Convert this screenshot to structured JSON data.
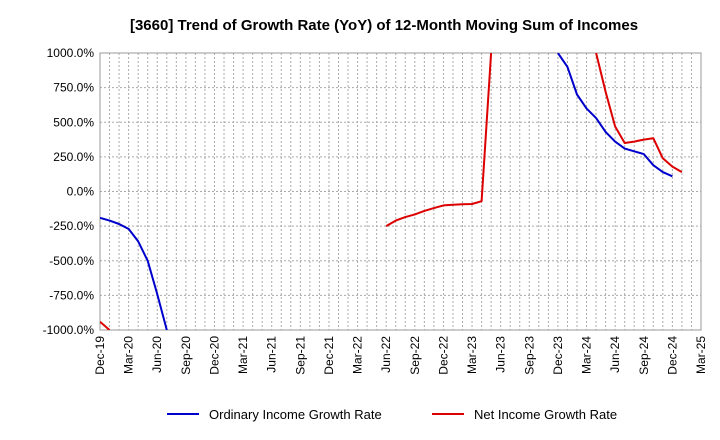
{
  "chart_data": {
    "type": "line",
    "title": "[3660]  Trend of Growth Rate (YoY) of 12-Month Moving Sum of Incomes",
    "xlabel": "",
    "ylabel": "",
    "ylim": [
      -1000,
      1000
    ],
    "yticks": [
      1000,
      750,
      500,
      250,
      0,
      -250,
      -500,
      -750,
      -1000
    ],
    "ytick_labels": [
      "1000.0%",
      "750.0%",
      "500.0%",
      "250.0%",
      "0.0%",
      "-250.0%",
      "-500.0%",
      "-750.0%",
      "-1000.0%"
    ],
    "x_start": "Dec-19",
    "x_end": "Mar-25",
    "xtick_labels": [
      "Dec-19",
      "Mar-20",
      "Jun-20",
      "Sep-20",
      "Dec-20",
      "Mar-21",
      "Jun-21",
      "Sep-21",
      "Dec-21",
      "Mar-22",
      "Jun-22",
      "Sep-22",
      "Dec-22",
      "Mar-23",
      "Jun-23",
      "Sep-23",
      "Dec-23",
      "Mar-24",
      "Jun-24",
      "Sep-24",
      "Dec-24",
      "Mar-25"
    ],
    "grid": true,
    "legend_position": "bottom",
    "series": [
      {
        "name": "Ordinary Income Growth Rate",
        "color": "#0000cc",
        "segments": [
          [
            [
              "Dec-19",
              -190
            ],
            [
              "Jan-20",
              -210
            ],
            [
              "Feb-20",
              -235
            ],
            [
              "Mar-20",
              -270
            ],
            [
              "Apr-20",
              -360
            ],
            [
              "May-20",
              -500
            ],
            [
              "Jun-20",
              -740
            ],
            [
              "Jul-20",
              -1000
            ]
          ],
          [
            [
              "Dec-23",
              1000
            ],
            [
              "Jan-24",
              900
            ],
            [
              "Feb-24",
              700
            ],
            [
              "Mar-24",
              600
            ],
            [
              "Apr-24",
              530
            ],
            [
              "May-24",
              430
            ],
            [
              "Jun-24",
              360
            ],
            [
              "Jul-24",
              310
            ],
            [
              "Aug-24",
              290
            ],
            [
              "Sep-24",
              270
            ],
            [
              "Oct-24",
              190
            ],
            [
              "Nov-24",
              140
            ],
            [
              "Dec-24",
              110
            ]
          ]
        ]
      },
      {
        "name": "Net Income Growth Rate",
        "color": "#dd0000",
        "segments": [
          [
            [
              "Dec-19",
              -940
            ],
            [
              "Jan-20",
              -1000
            ]
          ],
          [
            [
              "Jun-22",
              -250
            ],
            [
              "Jul-22",
              -210
            ],
            [
              "Aug-22",
              -185
            ],
            [
              "Sep-22",
              -165
            ],
            [
              "Oct-22",
              -140
            ],
            [
              "Nov-22",
              -120
            ],
            [
              "Dec-22",
              -100
            ],
            [
              "Jan-23",
              -95
            ],
            [
              "Feb-23",
              -92
            ],
            [
              "Mar-23",
              -90
            ],
            [
              "Apr-23",
              -70
            ],
            [
              "May-23",
              1000
            ]
          ],
          [
            [
              "Apr-24",
              1000
            ],
            [
              "May-24",
              720
            ],
            [
              "Jun-24",
              470
            ],
            [
              "Jul-24",
              350
            ],
            [
              "Aug-24",
              360
            ],
            [
              "Sep-24",
              375
            ],
            [
              "Oct-24",
              385
            ],
            [
              "Nov-24",
              240
            ],
            [
              "Dec-24",
              180
            ],
            [
              "Jan-25",
              140
            ]
          ]
        ]
      }
    ]
  }
}
